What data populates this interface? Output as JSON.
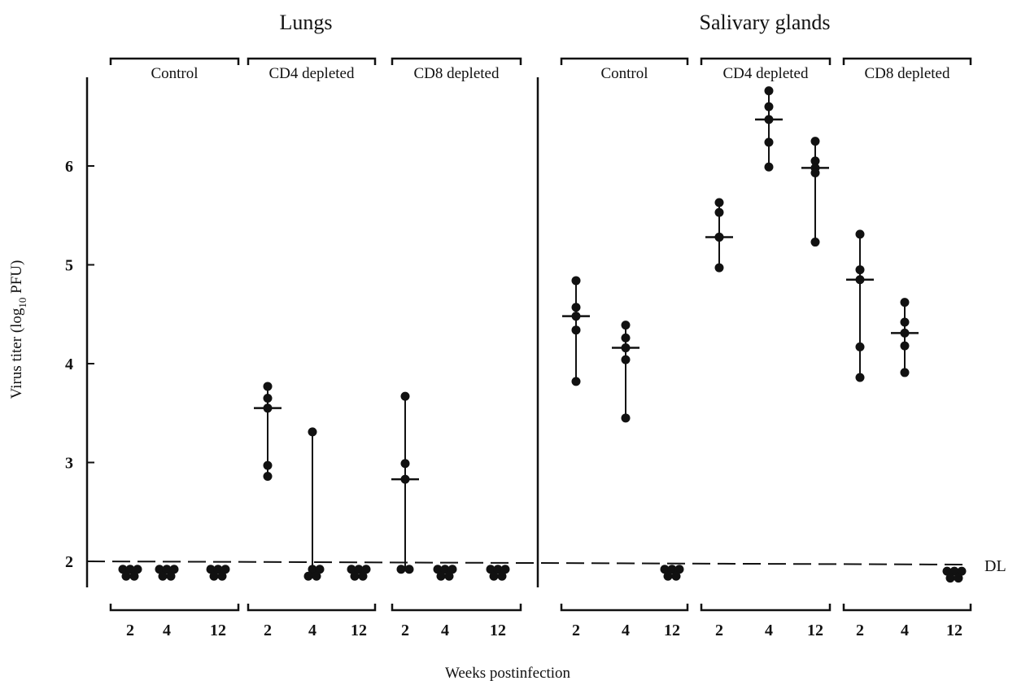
{
  "chart_data": {
    "type": "scatter",
    "ylabel": "Virus titer (log10 PFU)",
    "xlabel": "Weeks postinfection",
    "yticks": [
      2,
      3,
      4,
      5,
      6
    ],
    "ylim": [
      1.75,
      6.9
    ],
    "detection_limit": {
      "value": 2,
      "label": "DL"
    },
    "panels": [
      {
        "title": "Lungs",
        "groups": [
          {
            "label": "Control",
            "timepoints": [
              {
                "week": "2",
                "points": [
                  1.92,
                  1.92,
                  1.92,
                  1.85,
                  1.85
                ],
                "median": null
              },
              {
                "week": "4",
                "points": [
                  1.92,
                  1.92,
                  1.92,
                  1.85,
                  1.85
                ],
                "median": null
              },
              {
                "week": "12",
                "points": [
                  1.92,
                  1.92,
                  1.92,
                  1.85,
                  1.85
                ],
                "median": null
              }
            ]
          },
          {
            "label": "CD4 depleted",
            "timepoints": [
              {
                "week": "2",
                "points": [
                  3.77,
                  3.65,
                  3.55,
                  2.97,
                  2.86
                ],
                "median": 3.55
              },
              {
                "week": "4",
                "points": [
                  3.31,
                  1.92,
                  1.92,
                  1.85,
                  1.85
                ],
                "median": null
              },
              {
                "week": "12",
                "points": [
                  1.92,
                  1.92,
                  1.92,
                  1.85,
                  1.85
                ],
                "median": null
              }
            ]
          },
          {
            "label": "CD8 depleted",
            "timepoints": [
              {
                "week": "2",
                "points": [
                  3.67,
                  2.99,
                  2.83,
                  1.92,
                  1.92
                ],
                "median": 2.83
              },
              {
                "week": "4",
                "points": [
                  1.92,
                  1.92,
                  1.92,
                  1.85,
                  1.85
                ],
                "median": null
              },
              {
                "week": "12",
                "points": [
                  1.92,
                  1.92,
                  1.92,
                  1.85,
                  1.85
                ],
                "median": null
              }
            ]
          }
        ]
      },
      {
        "title": "Salivary glands",
        "groups": [
          {
            "label": "Control",
            "timepoints": [
              {
                "week": "2",
                "points": [
                  4.84,
                  4.57,
                  4.48,
                  4.34,
                  3.82
                ],
                "median": 4.48
              },
              {
                "week": "4",
                "points": [
                  4.39,
                  4.26,
                  4.16,
                  4.04,
                  3.45
                ],
                "median": 4.16
              },
              {
                "week": "12",
                "points": [
                  1.92,
                  1.92,
                  1.92,
                  1.85,
                  1.85
                ],
                "median": null
              }
            ]
          },
          {
            "label": "CD4 depleted",
            "timepoints": [
              {
                "week": "2",
                "points": [
                  5.63,
                  5.53,
                  5.28,
                  5.28,
                  4.97
                ],
                "median": 5.28
              },
              {
                "week": "4",
                "points": [
                  6.76,
                  6.6,
                  6.47,
                  6.24,
                  5.99
                ],
                "median": 6.47
              },
              {
                "week": "12",
                "points": [
                  6.25,
                  6.05,
                  5.98,
                  5.93,
                  5.23
                ],
                "median": 5.98
              }
            ]
          },
          {
            "label": "CD8 depleted",
            "timepoints": [
              {
                "week": "2",
                "points": [
                  5.31,
                  4.95,
                  4.85,
                  4.17,
                  3.86
                ],
                "median": 4.85
              },
              {
                "week": "4",
                "points": [
                  4.62,
                  4.42,
                  4.31,
                  4.18,
                  3.91
                ],
                "median": 4.31
              },
              {
                "week": "12",
                "points": [
                  1.9,
                  1.9,
                  1.9,
                  1.83,
                  1.83
                ],
                "median": null
              }
            ]
          }
        ]
      }
    ]
  }
}
